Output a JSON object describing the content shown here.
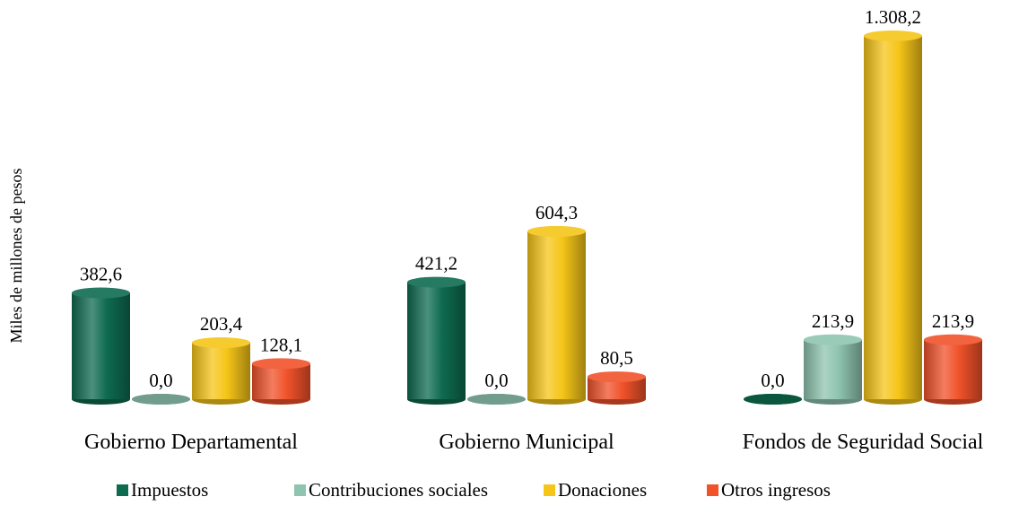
{
  "chart_data": {
    "type": "bar",
    "y_label": "Miles de millones de pesos",
    "categories": [
      "Gobierno Departamental",
      "Gobierno Municipal",
      "Fondos de Seguridad Social"
    ],
    "series": [
      {
        "name": "Impuestos",
        "color": "#0e6b4f",
        "values": [
          382.6,
          421.2,
          0.0
        ],
        "value_labels": [
          "382,6",
          "421,2",
          "0,0"
        ]
      },
      {
        "name": "Contribuciones sociales",
        "color": "#8fc4b0",
        "values": [
          0.0,
          0.0,
          213.9
        ],
        "value_labels": [
          "0,0",
          "0,0",
          "213,9"
        ]
      },
      {
        "name": "Donaciones",
        "color": "#f5c518",
        "values": [
          203.4,
          604.3,
          1308.2
        ],
        "value_labels": [
          "203,4",
          "604,3",
          "1.308,2"
        ]
      },
      {
        "name": "Otros ingresos",
        "color": "#f0522a",
        "values": [
          128.1,
          80.5,
          213.9
        ],
        "value_labels": [
          "128,1",
          "80,5",
          "213,9"
        ]
      }
    ],
    "legend": "bottom"
  }
}
